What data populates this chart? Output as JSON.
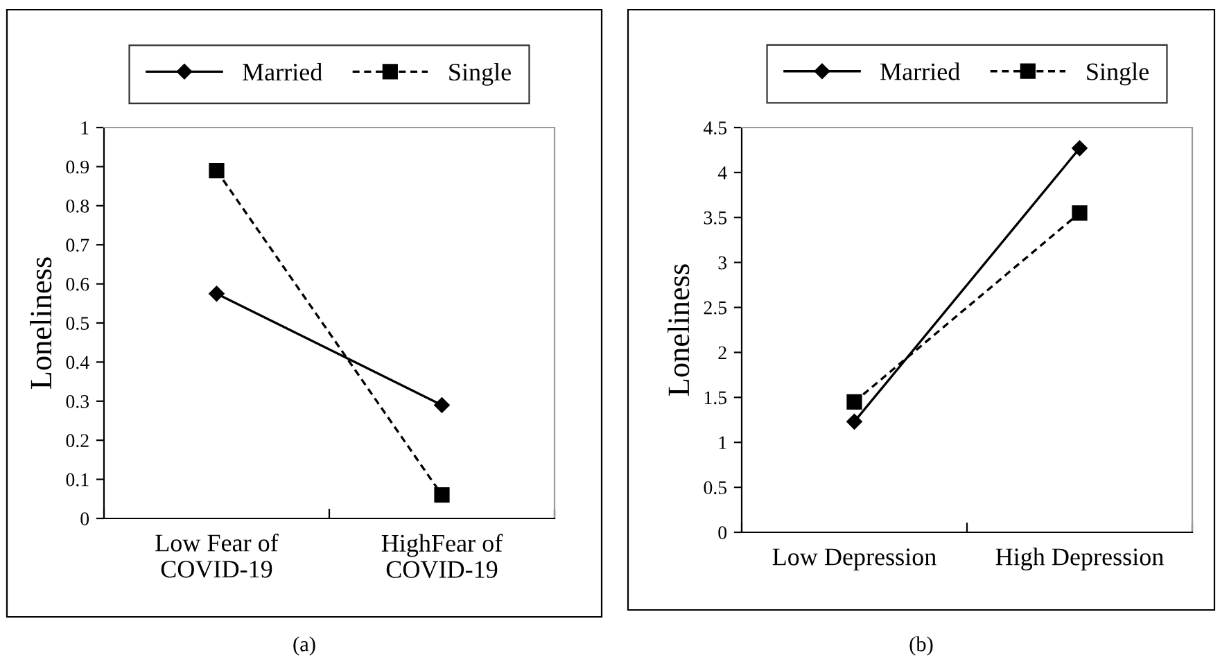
{
  "chart_data": [
    {
      "type": "line",
      "ylabel": "Loneliness",
      "categories": [
        "Low Fear of\nCOVID-19",
        "HighFear of\nCOVID-19"
      ],
      "ylim": [
        0,
        1
      ],
      "yticks": [
        0,
        0.1,
        0.2,
        0.3,
        0.4,
        0.5,
        0.6,
        0.7,
        0.8,
        0.9,
        1
      ],
      "legend": "top",
      "grid": false,
      "annotations": [
        "(a)"
      ],
      "series": [
        {
          "name": "Married",
          "color": "#000000",
          "values": [
            0.575,
            0.29
          ],
          "marker": "diamond",
          "line_style": "solid"
        },
        {
          "name": "Single",
          "color": "#000000",
          "values": [
            0.89,
            0.06
          ],
          "marker": "square",
          "line_style": "dashed"
        }
      ]
    },
    {
      "type": "line",
      "ylabel": "Loneliness",
      "categories": [
        "Low Depression",
        "High Depression"
      ],
      "ylim": [
        0,
        4.5
      ],
      "yticks": [
        0,
        0.5,
        1,
        1.5,
        2,
        2.5,
        3,
        3.5,
        4,
        4.5
      ],
      "legend": "top",
      "grid": false,
      "annotations": [
        "(b)"
      ],
      "series": [
        {
          "name": "Married",
          "color": "#000000",
          "values": [
            1.23,
            4.27
          ],
          "marker": "diamond",
          "line_style": "solid"
        },
        {
          "name": "Single",
          "color": "#000000",
          "values": [
            1.45,
            3.55
          ],
          "marker": "square",
          "line_style": "dashed"
        }
      ]
    }
  ]
}
